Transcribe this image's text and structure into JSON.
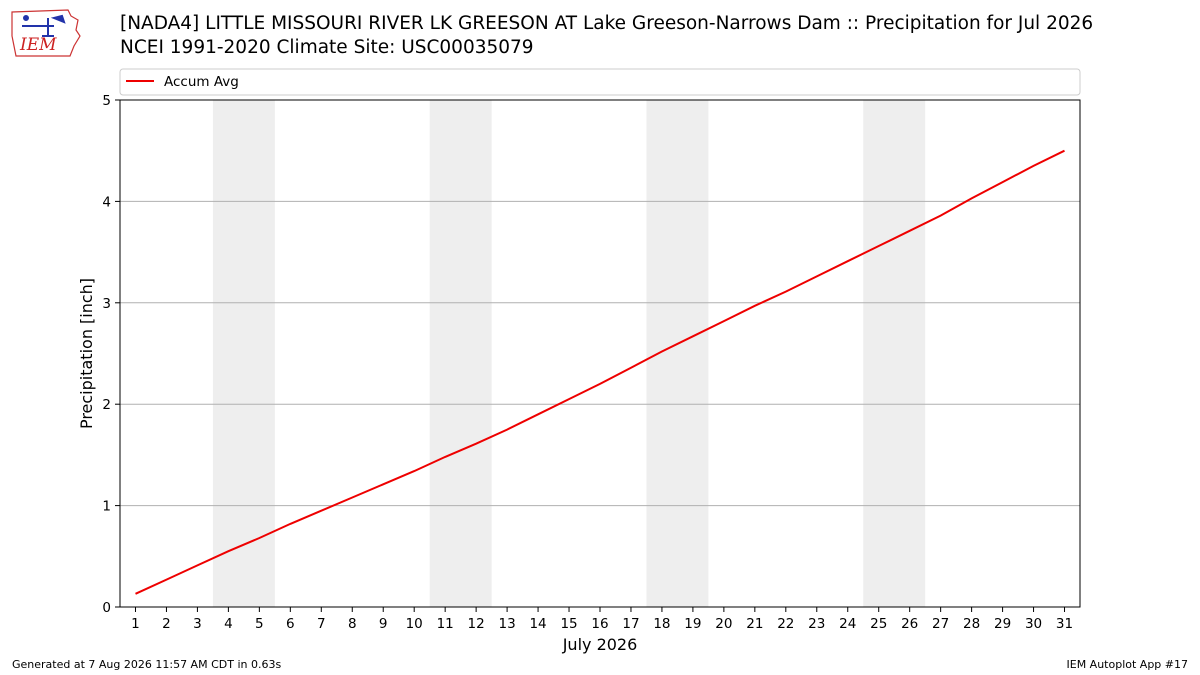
{
  "logo": {
    "text": "IEM",
    "icon": "iem-iowa-logo"
  },
  "header": {
    "title_line1": "[NADA4] LITTLE MISSOURI RIVER LK GREESON  AT Lake Greeson-Narrows Dam :: Precipitation for Jul 2026",
    "title_line2": "NCEI 1991-2020 Climate Site: USC00035079"
  },
  "footer": {
    "left": "Generated at 7 Aug 2026 11:57 AM CDT in 0.63s",
    "right": "IEM Autoplot App #17"
  },
  "chart_data": {
    "type": "line",
    "xlabel": "July 2026",
    "ylabel": "Precipitation [inch]",
    "xlim": [
      0.5,
      31.5
    ],
    "ylim": [
      0,
      5
    ],
    "xticks": [
      "1",
      "2",
      "3",
      "4",
      "5",
      "6",
      "7",
      "8",
      "9",
      "10",
      "11",
      "12",
      "13",
      "14",
      "15",
      "16",
      "17",
      "18",
      "19",
      "20",
      "21",
      "22",
      "23",
      "24",
      "25",
      "26",
      "27",
      "28",
      "29",
      "30",
      "31"
    ],
    "yticks": [
      "0",
      "1",
      "2",
      "3",
      "4",
      "5"
    ],
    "grid": "y",
    "legend_position": "top",
    "weekend_shading": [
      [
        4,
        5
      ],
      [
        11,
        12
      ],
      [
        18,
        19
      ],
      [
        25,
        26
      ]
    ],
    "shading_color": "#eeeeee",
    "series": [
      {
        "name": "Accum Avg",
        "color": "#ee0000",
        "x": [
          1,
          2,
          3,
          4,
          5,
          6,
          7,
          8,
          9,
          10,
          11,
          12,
          13,
          14,
          15,
          16,
          17,
          18,
          19,
          20,
          21,
          22,
          23,
          24,
          25,
          26,
          27,
          28,
          29,
          30,
          31
        ],
        "values": [
          0.13,
          0.27,
          0.41,
          0.55,
          0.68,
          0.82,
          0.95,
          1.08,
          1.21,
          1.34,
          1.48,
          1.61,
          1.75,
          1.9,
          2.05,
          2.2,
          2.36,
          2.52,
          2.67,
          2.82,
          2.97,
          3.11,
          3.26,
          3.41,
          3.56,
          3.71,
          3.86,
          4.03,
          4.19,
          4.35,
          4.5
        ]
      }
    ]
  }
}
